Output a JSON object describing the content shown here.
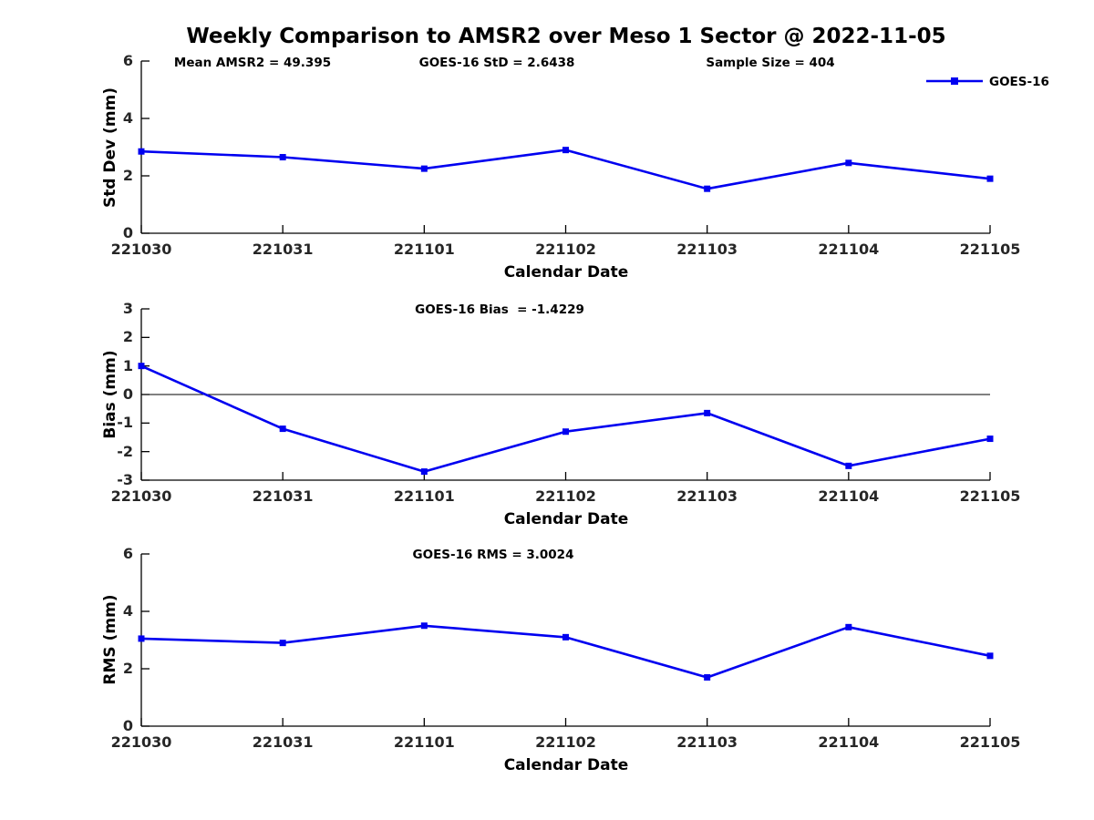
{
  "title": "Weekly Comparison to AMSR2 over Meso 1 Sector @ 2022-11-05",
  "legend": {
    "label": "GOES-16"
  },
  "colors": {
    "line": "#0000F0",
    "axis": "#000000",
    "tick_text": "#262626",
    "zero_line": "#000000"
  },
  "chart_data": [
    {
      "type": "line",
      "title": "",
      "ylabel": "Std Dev (mm)",
      "xlabel": "Calendar Date",
      "categories": [
        "221030",
        "221031",
        "221101",
        "221102",
        "221103",
        "221104",
        "221105"
      ],
      "series": [
        {
          "name": "GOES-16",
          "values": [
            2.85,
            2.65,
            2.25,
            2.9,
            1.55,
            2.45,
            1.9
          ]
        }
      ],
      "ylim": [
        0,
        6
      ],
      "yticks": [
        0,
        2,
        4,
        6
      ],
      "grid": false,
      "zero_line": false,
      "legend_position": "top-right",
      "annotations": [
        "Mean AMSR2 = 49.395",
        "GOES-16 StD = 2.6438",
        "Sample Size = 404"
      ]
    },
    {
      "type": "line",
      "title": "",
      "ylabel": "Bias (mm)",
      "xlabel": "Calendar Date",
      "categories": [
        "221030",
        "221031",
        "221101",
        "221102",
        "221103",
        "221104",
        "221105"
      ],
      "series": [
        {
          "name": "GOES-16",
          "values": [
            1.0,
            -1.2,
            -2.7,
            -1.3,
            -0.65,
            -2.5,
            -1.55
          ]
        }
      ],
      "ylim": [
        -3,
        3
      ],
      "yticks": [
        -3,
        -2,
        -1,
        0,
        1,
        2,
        3
      ],
      "grid": false,
      "zero_line": true,
      "legend_position": "none",
      "annotations": [
        "GOES-16 Bias  = -1.4229"
      ]
    },
    {
      "type": "line",
      "title": "",
      "ylabel": "RMS (mm)",
      "xlabel": "Calendar Date",
      "categories": [
        "221030",
        "221031",
        "221101",
        "221102",
        "221103",
        "221104",
        "221105"
      ],
      "series": [
        {
          "name": "GOES-16",
          "values": [
            3.05,
            2.9,
            3.5,
            3.1,
            1.7,
            3.45,
            2.45
          ]
        }
      ],
      "ylim": [
        0,
        6
      ],
      "yticks": [
        0,
        2,
        4,
        6
      ],
      "grid": false,
      "zero_line": false,
      "legend_position": "none",
      "annotations": [
        "GOES-16 RMS = 3.0024"
      ]
    }
  ]
}
